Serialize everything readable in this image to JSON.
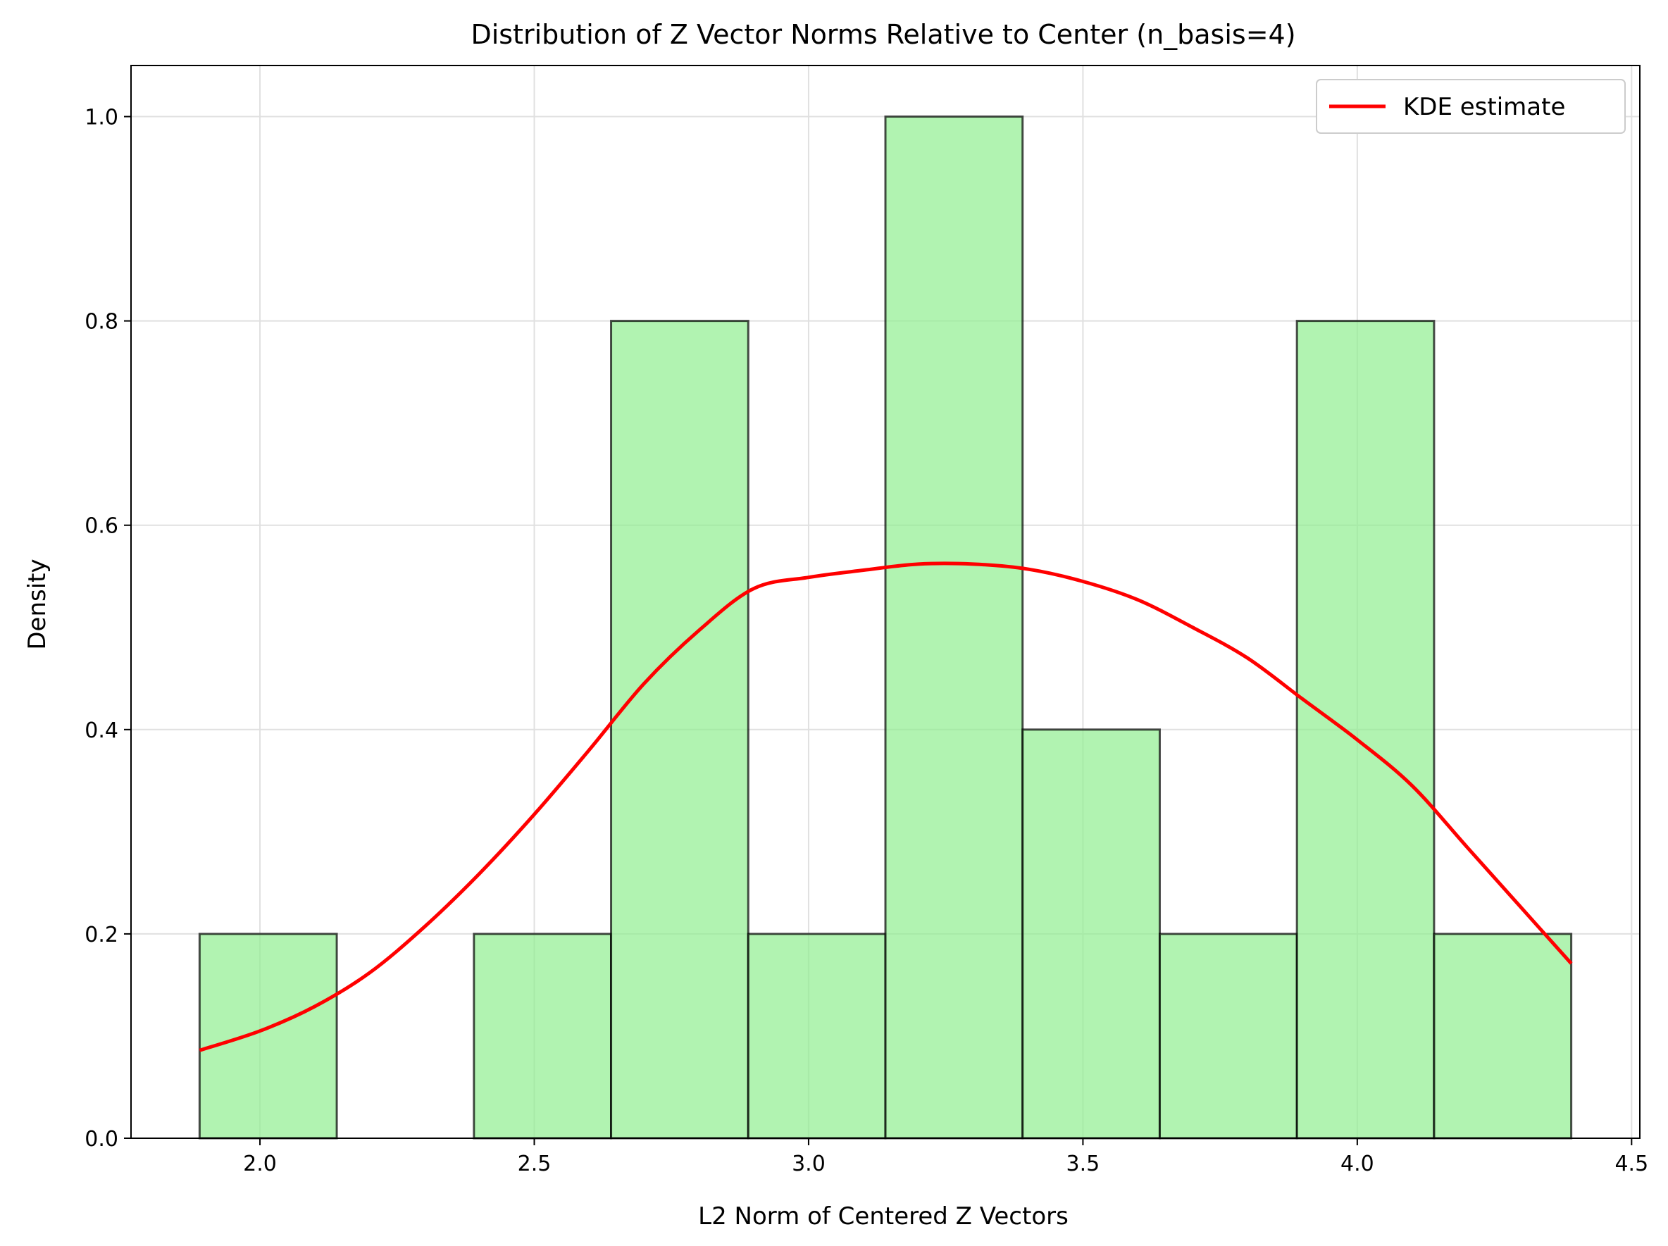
{
  "chart_data": {
    "type": "histogram",
    "title": "Distribution of Z Vector Norms Relative to Center (n_basis=4)",
    "xlabel": "L2 Norm of Centered Z Vectors",
    "ylabel": "Density",
    "xlim": [
      1.765,
      4.515
    ],
    "ylim": [
      0,
      1.05
    ],
    "xticks": [
      2.0,
      2.5,
      3.0,
      3.5,
      4.0,
      4.5
    ],
    "xtick_labels": [
      "2.0",
      "2.5",
      "3.0",
      "3.5",
      "4.0",
      "4.5"
    ],
    "yticks": [
      0.0,
      0.2,
      0.4,
      0.6,
      0.8,
      1.0
    ],
    "ytick_labels": [
      "0.0",
      "0.2",
      "0.4",
      "0.6",
      "0.8",
      "1.0"
    ],
    "grid": true,
    "legend_placement": "top-right",
    "bins": [
      {
        "x0": 1.89,
        "x1": 2.14,
        "density": 0.2
      },
      {
        "x0": 2.14,
        "x1": 2.39,
        "density": 0.0
      },
      {
        "x0": 2.39,
        "x1": 2.64,
        "density": 0.2
      },
      {
        "x0": 2.64,
        "x1": 2.89,
        "density": 0.8
      },
      {
        "x0": 2.89,
        "x1": 3.14,
        "density": 0.2
      },
      {
        "x0": 3.14,
        "x1": 3.39,
        "density": 1.0
      },
      {
        "x0": 3.39,
        "x1": 3.64,
        "density": 0.4
      },
      {
        "x0": 3.64,
        "x1": 3.89,
        "density": 0.2
      },
      {
        "x0": 3.89,
        "x1": 4.14,
        "density": 0.8
      },
      {
        "x0": 4.14,
        "x1": 4.39,
        "density": 0.2
      }
    ],
    "series": [
      {
        "name": "KDE estimate",
        "x": [
          1.89,
          2.0,
          2.1,
          2.2,
          2.3,
          2.4,
          2.5,
          2.6,
          2.7,
          2.8,
          2.9,
          3.0,
          3.1,
          3.2,
          3.3,
          3.4,
          3.5,
          3.6,
          3.7,
          3.8,
          3.9,
          4.0,
          4.1,
          4.2,
          4.3,
          4.39
        ],
        "y": [
          0.086,
          0.105,
          0.129,
          0.162,
          0.207,
          0.259,
          0.317,
          0.38,
          0.445,
          0.497,
          0.538,
          0.549,
          0.556,
          0.562,
          0.562,
          0.557,
          0.545,
          0.527,
          0.5,
          0.47,
          0.43,
          0.39,
          0.345,
          0.285,
          0.225,
          0.171
        ]
      }
    ],
    "colors": {
      "bar_fill": "#90ee90",
      "bar_edge": "#000000",
      "kde_line": "#ff0000",
      "grid": "#e0e0e0"
    }
  }
}
